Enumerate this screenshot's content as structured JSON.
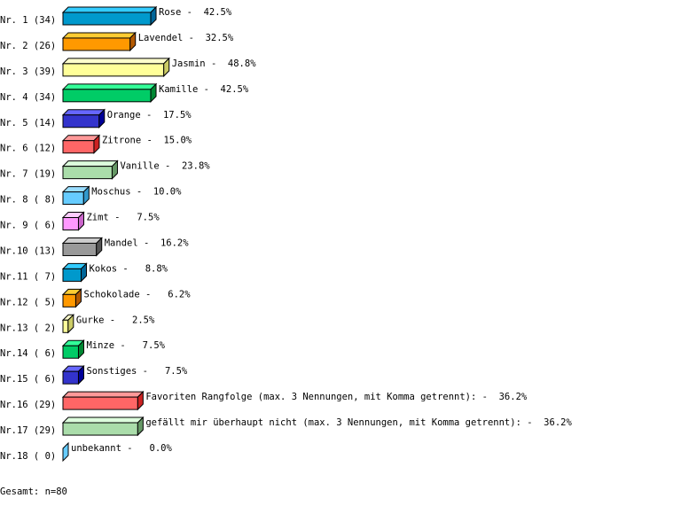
{
  "chart_data": {
    "type": "bar",
    "orientation": "horizontal",
    "style": "3d",
    "unit": "%",
    "grid": false,
    "rows": [
      {
        "rank": "Nr. 1",
        "count": 34,
        "label": "Rose",
        "percent": 42.5
      },
      {
        "rank": "Nr. 2",
        "count": 26,
        "label": "Lavendel",
        "percent": 32.5
      },
      {
        "rank": "Nr. 3",
        "count": 39,
        "label": "Jasmin",
        "percent": 48.8
      },
      {
        "rank": "Nr. 4",
        "count": 34,
        "label": "Kamille",
        "percent": 42.5
      },
      {
        "rank": "Nr. 5",
        "count": 14,
        "label": "Orange",
        "percent": 17.5
      },
      {
        "rank": "Nr. 6",
        "count": 12,
        "label": "Zitrone",
        "percent": 15.0
      },
      {
        "rank": "Nr. 7",
        "count": 19,
        "label": "Vanille",
        "percent": 23.8
      },
      {
        "rank": "Nr. 8",
        "count": 8,
        "label": "Moschus",
        "percent": 10.0
      },
      {
        "rank": "Nr. 9",
        "count": 6,
        "label": "Zimt",
        "percent": 7.5
      },
      {
        "rank": "Nr.10",
        "count": 13,
        "label": "Mandel",
        "percent": 16.2
      },
      {
        "rank": "Nr.11",
        "count": 7,
        "label": "Kokos",
        "percent": 8.8
      },
      {
        "rank": "Nr.12",
        "count": 5,
        "label": "Schokolade",
        "percent": 6.2
      },
      {
        "rank": "Nr.13",
        "count": 2,
        "label": "Gurke",
        "percent": 2.5
      },
      {
        "rank": "Nr.14",
        "count": 6,
        "label": "Minze",
        "percent": 7.5
      },
      {
        "rank": "Nr.15",
        "count": 6,
        "label": "Sonstiges",
        "percent": 7.5
      },
      {
        "rank": "Nr.16",
        "count": 29,
        "label": "Favoriten Rangfolge (max. 3 Nennungen, mit Komma getrennt):",
        "percent": 36.2
      },
      {
        "rank": "Nr.17",
        "count": 29,
        "label": "gefällt mir überhaupt nicht (max. 3 Nennungen, mit Komma getrennt):",
        "percent": 36.2
      },
      {
        "rank": "Nr.18",
        "count": 0,
        "label": "unbekannt",
        "percent": 0.0
      }
    ],
    "palette": [
      {
        "front": "#0099cc",
        "top": "#33ccff",
        "side": "#006699"
      },
      {
        "front": "#ff9900",
        "top": "#ffcc33",
        "side": "#b35900"
      },
      {
        "front": "#ffff99",
        "top": "#ffffcc",
        "side": "#cccc66"
      },
      {
        "front": "#00cc66",
        "top": "#33ff99",
        "side": "#008833"
      },
      {
        "front": "#3333cc",
        "top": "#6666ff",
        "side": "#000099"
      },
      {
        "front": "#ff6666",
        "top": "#ff9999",
        "side": "#cc2222"
      },
      {
        "front": "#aaddaa",
        "top": "#ddffdd",
        "side": "#669966"
      },
      {
        "front": "#66ccff",
        "top": "#99ddff",
        "side": "#3399cc"
      },
      {
        "front": "#ff99ff",
        "top": "#ffccff",
        "side": "#cc66cc"
      },
      {
        "front": "#999999",
        "top": "#cccccc",
        "side": "#555555"
      }
    ],
    "total_label": "Gesamt: n=80"
  }
}
